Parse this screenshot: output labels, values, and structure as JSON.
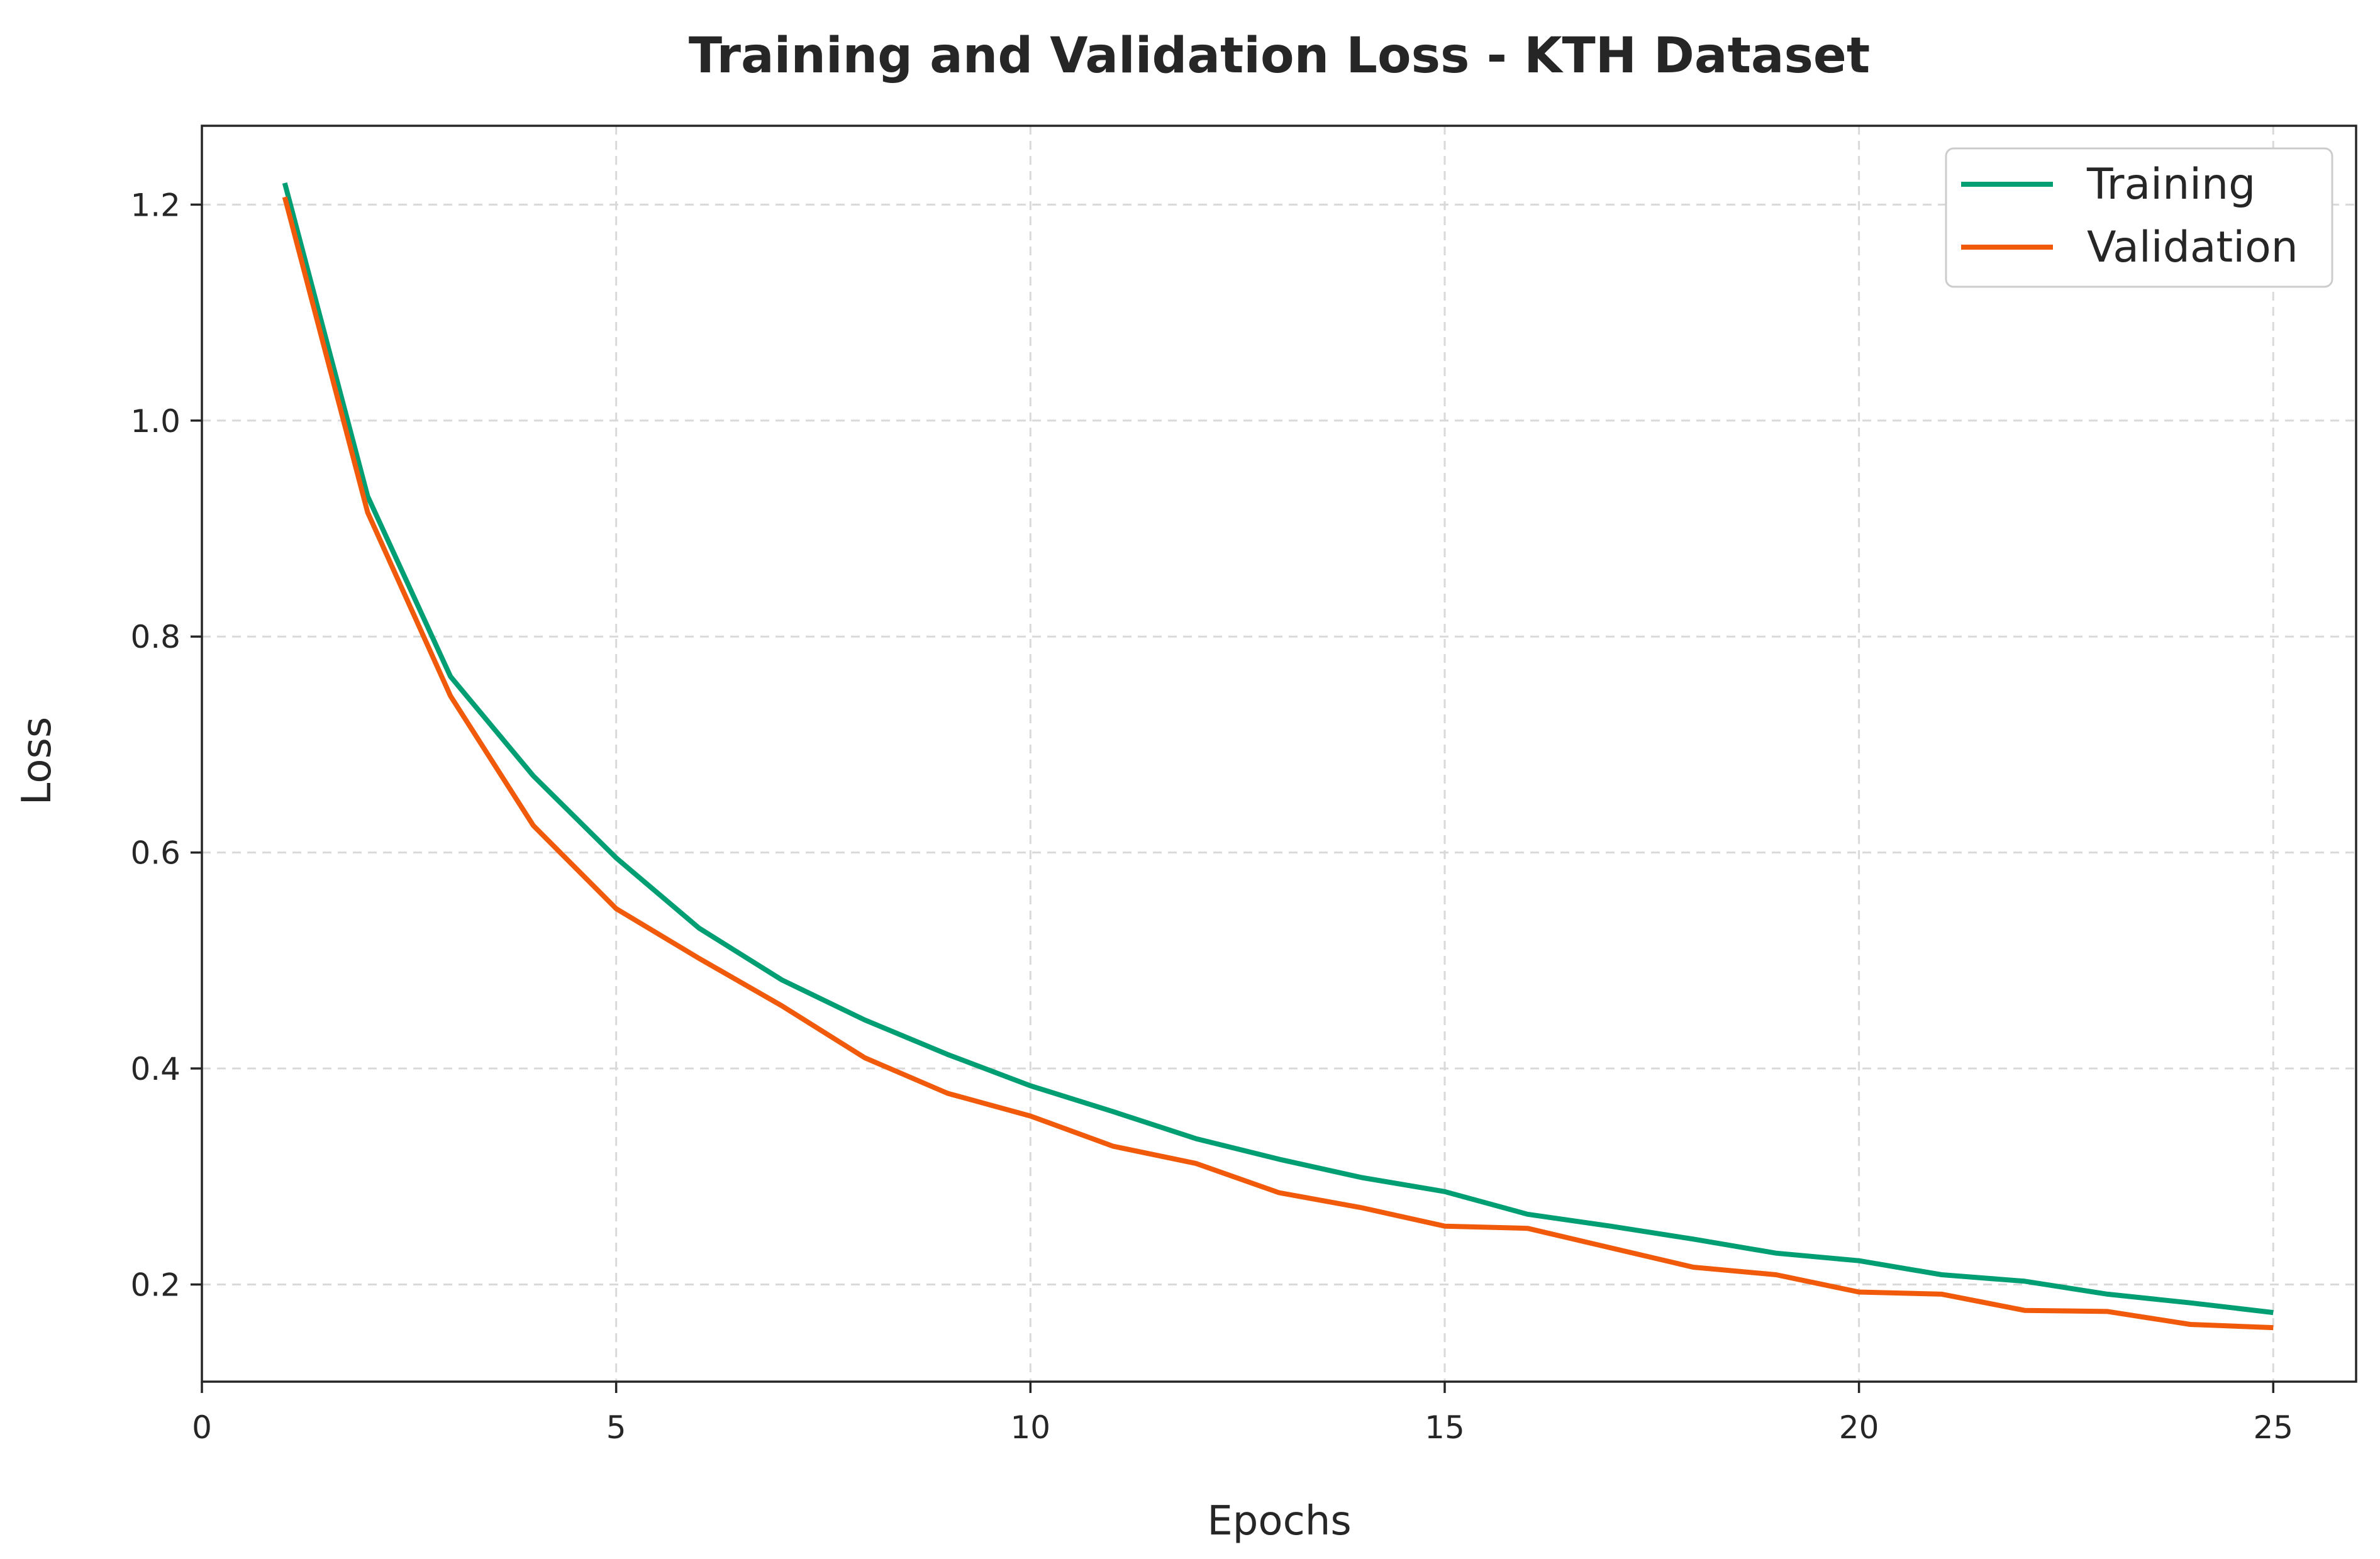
{
  "chart_data": {
    "type": "line",
    "title": "Training and Validation Loss - KTH Dataset",
    "xlabel": "Epochs",
    "ylabel": "Loss",
    "xlim": [
      0,
      26
    ],
    "ylim": [
      0.11,
      1.273
    ],
    "xticks": [
      0,
      5,
      10,
      15,
      20,
      25
    ],
    "xtick_labels": [
      "0",
      "5",
      "10",
      "15",
      "20",
      "25"
    ],
    "yticks": [
      0.2,
      0.4,
      0.6,
      0.8,
      1.0,
      1.2
    ],
    "ytick_labels": [
      "0.2",
      "0.4",
      "0.6",
      "0.8",
      "1.0",
      "1.2"
    ],
    "grid": true,
    "legend_position": "top-right",
    "x": [
      1,
      2,
      3,
      4,
      5,
      6,
      7,
      8,
      9,
      10,
      11,
      12,
      13,
      14,
      15,
      16,
      17,
      18,
      19,
      20,
      21,
      22,
      23,
      24,
      25
    ],
    "series": [
      {
        "name": "Training",
        "color": "#009e73",
        "values": [
          1.22,
          0.93,
          0.763,
          0.671,
          0.595,
          0.53,
          0.482,
          0.445,
          0.413,
          0.384,
          0.36,
          0.335,
          0.316,
          0.299,
          0.286,
          0.265,
          0.254,
          0.242,
          0.229,
          0.222,
          0.209,
          0.203,
          0.191,
          0.183,
          0.174
        ]
      },
      {
        "name": "Validation",
        "color": "#f15a0a",
        "values": [
          1.207,
          0.915,
          0.745,
          0.625,
          0.548,
          0.502,
          0.458,
          0.41,
          0.377,
          0.356,
          0.328,
          0.312,
          0.285,
          0.271,
          0.254,
          0.252,
          0.234,
          0.216,
          0.209,
          0.193,
          0.191,
          0.176,
          0.175,
          0.163,
          0.16
        ]
      }
    ]
  }
}
